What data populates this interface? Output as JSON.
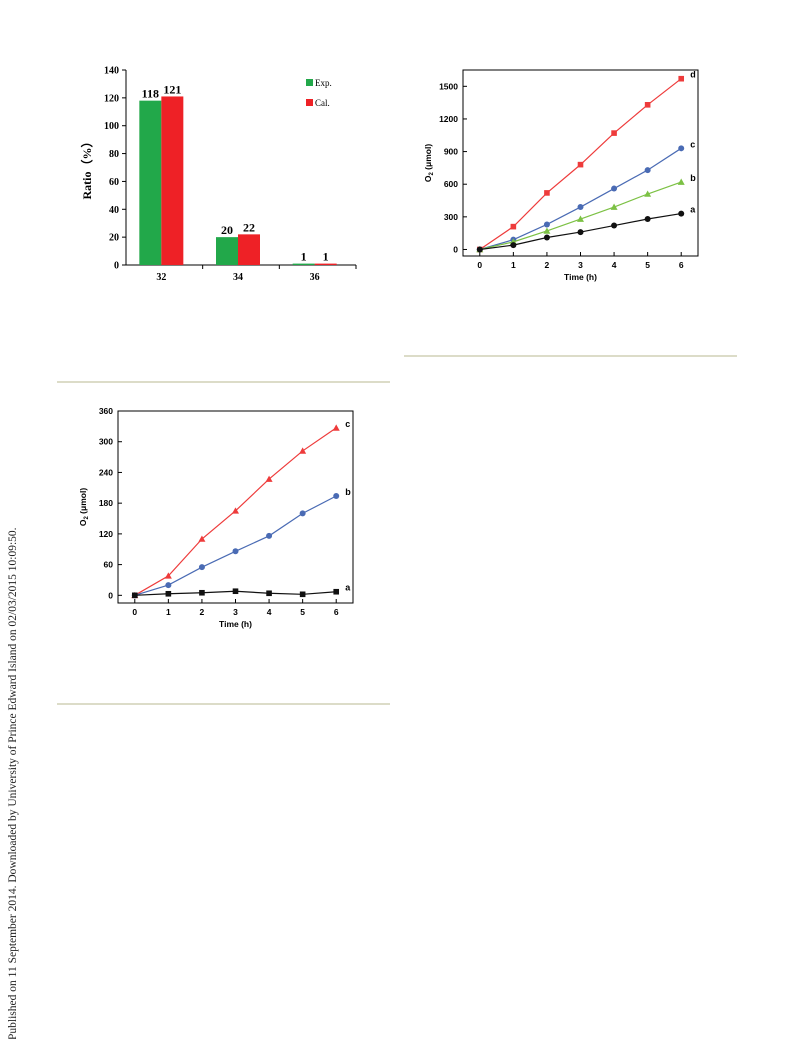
{
  "margin_note": "Published on 11 September 2014. Downloaded by University of Prince Edward Island on 02/03/2015 10:09:50.",
  "chart_data": [
    {
      "type": "bar",
      "categories": [
        "32",
        "34",
        "36"
      ],
      "series": [
        {
          "name": "Exp.",
          "values": [
            118,
            20,
            1
          ],
          "color": "#22a84a"
        },
        {
          "name": "Cal.",
          "values": [
            121,
            22,
            1
          ],
          "color": "#ee2126"
        }
      ],
      "ylabel": "Ratio（%）",
      "ylim": [
        0,
        140
      ],
      "yticks": [
        "0",
        "20",
        "40",
        "60",
        "80",
        "100",
        "120",
        "140"
      ],
      "legend": "top-right"
    },
    {
      "type": "line",
      "x": [
        0,
        1,
        2,
        3,
        4,
        5,
        6
      ],
      "xticks": [
        "0",
        "1",
        "2",
        "3",
        "4",
        "5",
        "6"
      ],
      "yticks": [
        "0",
        "300",
        "600",
        "900",
        "1200",
        "1500"
      ],
      "xlabel": "Time (h)",
      "ylabel_main": "O",
      "ylabel_sub": "2",
      "ylabel_unit": " (μmol)",
      "ylim": [
        -60,
        1650
      ],
      "xlim": [
        -0.5,
        6.5
      ],
      "series": [
        {
          "name": "d",
          "marker": "square",
          "color": "#ee3b3b",
          "values": [
            0,
            210,
            520,
            780,
            1070,
            1330,
            1570
          ]
        },
        {
          "name": "c",
          "marker": "circle",
          "color": "#4a6bb4",
          "values": [
            0,
            90,
            230,
            390,
            560,
            730,
            930
          ]
        },
        {
          "name": "b",
          "marker": "triangle",
          "color": "#7cc144",
          "values": [
            0,
            70,
            170,
            280,
            390,
            510,
            620
          ]
        },
        {
          "name": "a",
          "marker": "circle",
          "color": "#111111",
          "values": [
            0,
            40,
            110,
            160,
            220,
            280,
            330
          ]
        }
      ]
    },
    {
      "type": "line",
      "x": [
        0,
        1,
        2,
        3,
        4,
        5,
        6
      ],
      "xticks": [
        "0",
        "1",
        "2",
        "3",
        "4",
        "5",
        "6"
      ],
      "yticks": [
        "0",
        "60",
        "120",
        "180",
        "240",
        "300",
        "360"
      ],
      "xlabel": "Time (h)",
      "ylabel_main": "O",
      "ylabel_sub": "2",
      "ylabel_unit": " (μmol)",
      "ylim": [
        -15,
        360
      ],
      "xlim": [
        -0.5,
        6.5
      ],
      "series": [
        {
          "name": "c",
          "marker": "triangle",
          "color": "#ee3b3b",
          "values": [
            0,
            38,
            110,
            165,
            227,
            282,
            327
          ]
        },
        {
          "name": "b",
          "marker": "circle",
          "color": "#4a6bb4",
          "values": [
            0,
            20,
            55,
            86,
            116,
            160,
            194
          ]
        },
        {
          "name": "a",
          "marker": "square",
          "color": "#111111",
          "values": [
            0,
            3,
            5,
            8,
            4,
            2,
            7
          ]
        }
      ]
    }
  ]
}
